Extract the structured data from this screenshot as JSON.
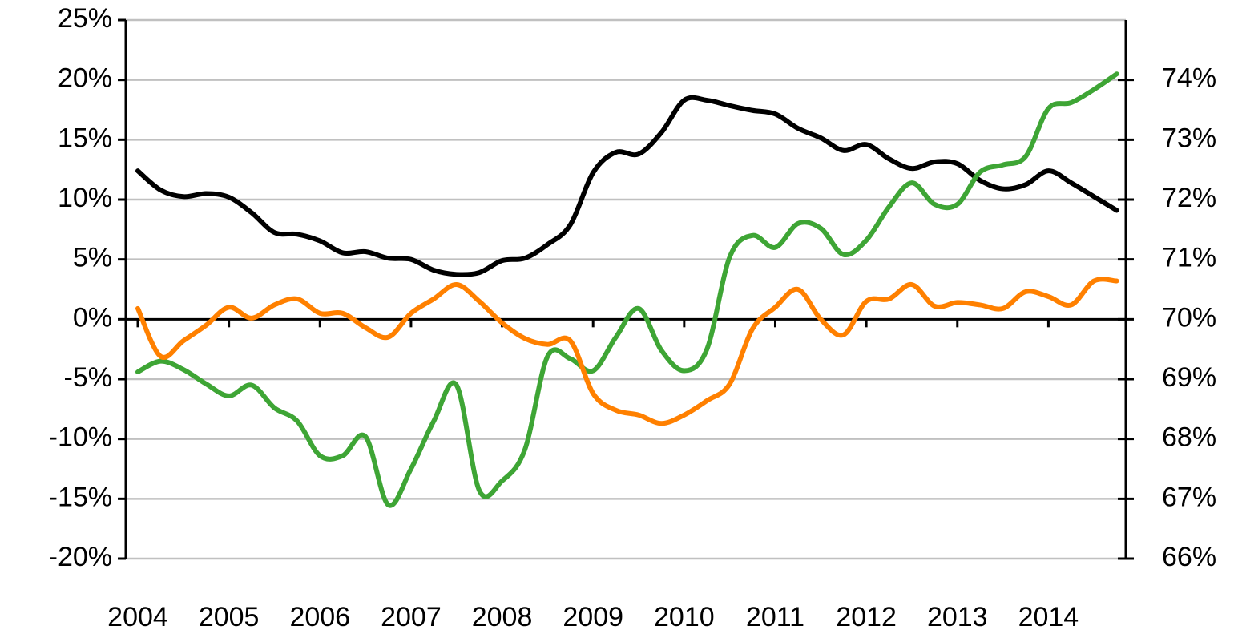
{
  "chart_data": {
    "type": "line",
    "x": [
      2004,
      2004.25,
      2004.5,
      2004.75,
      2005,
      2005.25,
      2005.5,
      2005.75,
      2006,
      2006.25,
      2006.5,
      2006.75,
      2007,
      2007.25,
      2007.5,
      2007.75,
      2008,
      2008.25,
      2008.5,
      2008.75,
      2009,
      2009.25,
      2009.5,
      2009.75,
      2010,
      2010.25,
      2010.5,
      2010.75,
      2011,
      2011.25,
      2011.5,
      2011.75,
      2012,
      2012.25,
      2012.5,
      2012.75,
      2013,
      2013.25,
      2013.5,
      2013.75,
      2014,
      2014.25,
      2014.5,
      2014.75
    ],
    "series": [
      {
        "color": "#000000",
        "axis": "y2",
        "values": [
          72.48,
          72.16,
          72.05,
          72.1,
          72.04,
          71.78,
          71.45,
          71.42,
          71.31,
          71.11,
          71.13,
          71.02,
          71.0,
          70.82,
          70.75,
          70.78,
          70.98,
          71.02,
          71.25,
          71.58,
          72.45,
          72.79,
          72.76,
          73.12,
          73.66,
          73.66,
          73.57,
          73.49,
          73.43,
          73.19,
          73.03,
          72.82,
          72.92,
          72.68,
          72.52,
          72.63,
          72.6,
          72.32,
          72.18,
          72.25,
          72.48,
          72.28,
          72.05,
          71.82
        ]
      },
      {
        "color": "#3ea535",
        "values": [
          -4.4,
          -3.5,
          -4.2,
          -5.4,
          -6.4,
          -5.5,
          -7.4,
          -8.5,
          -11.4,
          -11.4,
          -9.8,
          -15.5,
          -12.5,
          -8.5,
          -5.5,
          -14.3,
          -13.5,
          -10.9,
          -3.1,
          -3.3,
          -4.3,
          -1.5,
          0.9,
          -2.6,
          -4.3,
          -2.5,
          5.2,
          7.0,
          6.0,
          8.0,
          7.6,
          5.4,
          6.6,
          9.4,
          11.4,
          9.6,
          9.6,
          12.3,
          12.9,
          13.6,
          17.6,
          18.1,
          19.2,
          20.5
        ]
      },
      {
        "color": "#ff8000",
        "values": [
          0.9,
          -3.1,
          -1.8,
          -0.5,
          1.0,
          0.1,
          1.2,
          1.7,
          0.5,
          0.5,
          -0.7,
          -1.5,
          0.5,
          1.7,
          2.9,
          1.5,
          -0.3,
          -1.6,
          -2.1,
          -1.8,
          -6.2,
          -7.6,
          -8.0,
          -8.7,
          -8.0,
          -6.8,
          -5.4,
          -0.8,
          1.0,
          2.5,
          0.0,
          -1.3,
          1.5,
          1.7,
          2.9,
          1.1,
          1.4,
          1.2,
          0.9,
          2.3,
          1.9,
          1.2,
          3.2,
          3.2
        ]
      }
    ],
    "xlim": [
      2003.868,
      2014.85
    ],
    "xticks": [
      2004,
      2005,
      2006,
      2007,
      2008,
      2009,
      2010,
      2011,
      2012,
      2013,
      2014
    ],
    "ylim": [
      -20,
      25
    ],
    "yticks": [
      {
        "value": -20,
        "label": "-20%"
      },
      {
        "value": -15,
        "label": "-15%"
      },
      {
        "value": -10,
        "label": "-10%"
      },
      {
        "value": -5,
        "label": "-5%"
      },
      {
        "value": 0,
        "label": "0%"
      },
      {
        "value": 5,
        "label": "5%"
      },
      {
        "value": 10,
        "label": "10%"
      },
      {
        "value": 15,
        "label": "15%"
      },
      {
        "value": 20,
        "label": "20%"
      },
      {
        "value": 25,
        "label": "25%"
      }
    ],
    "y2lim": [
      66,
      75
    ],
    "y2ticks": [
      {
        "value": 66,
        "label": "66%"
      },
      {
        "value": 67,
        "label": "67%"
      },
      {
        "value": 68,
        "label": "68%"
      },
      {
        "value": 69,
        "label": "69%"
      },
      {
        "value": 70,
        "label": "70%"
      },
      {
        "value": 71,
        "label": "71%"
      },
      {
        "value": 72,
        "label": "72%"
      },
      {
        "value": 73,
        "label": "73%"
      },
      {
        "value": 74,
        "label": "74%"
      }
    ],
    "grid": true
  }
}
